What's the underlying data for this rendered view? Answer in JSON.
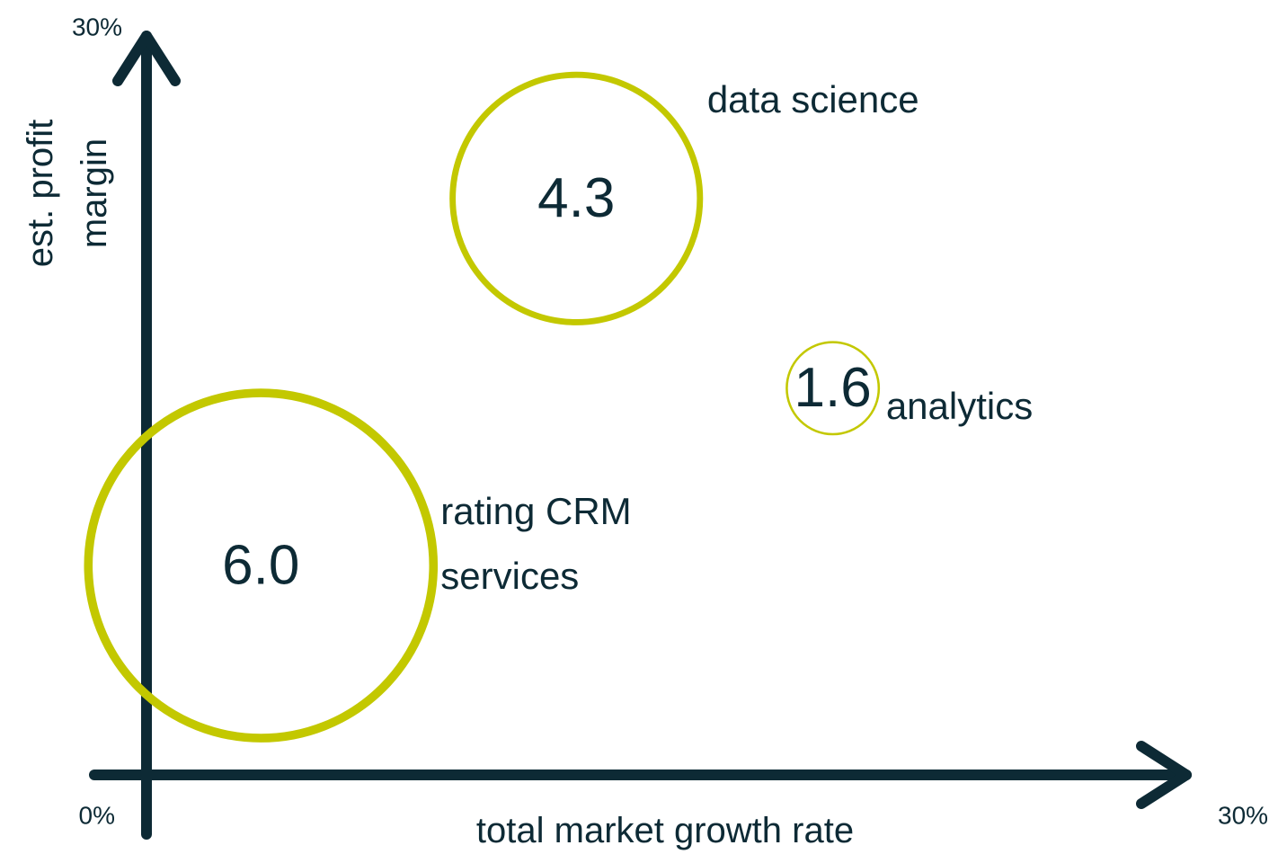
{
  "chart_data": {
    "type": "bubble",
    "x_label": "total market growth rate",
    "y_label": "est. profit margin",
    "labels": [
      "rating CRM services",
      "data science",
      "analytics"
    ],
    "x": [
      3.3,
      12.4,
      19.8
    ],
    "values": [
      8.5,
      23.4,
      15.7
    ],
    "sizes": [
      6.0,
      4.3,
      1.6
    ],
    "size_labels": [
      "6.0",
      "4.3",
      "1.6"
    ],
    "color": "#c3c800",
    "axis_color": "#0d2a35",
    "xlim": [
      0,
      30
    ],
    "ylim": [
      0,
      30
    ],
    "xticks": [
      {
        "value": 0,
        "label": "0%"
      },
      {
        "value": 30,
        "label": "30%"
      }
    ],
    "yticks": [
      {
        "value": 30,
        "label": "30%"
      }
    ]
  }
}
